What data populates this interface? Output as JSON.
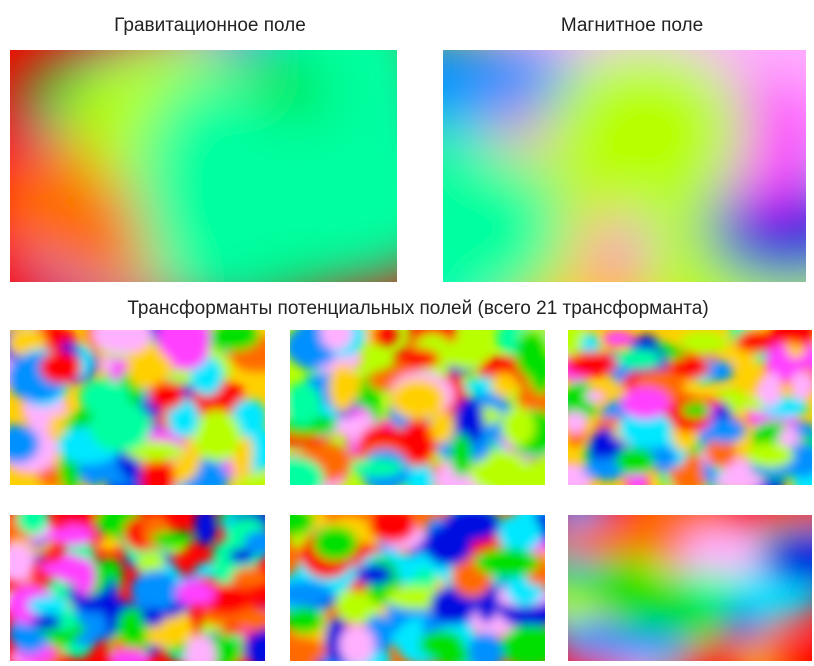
{
  "header": {
    "gravity_title": "Гравитационное поле",
    "magnetic_title": "Магнитное поле"
  },
  "section": {
    "title": "Трансформанты потенциальных полей (всего 21 трансформанта)"
  }
}
